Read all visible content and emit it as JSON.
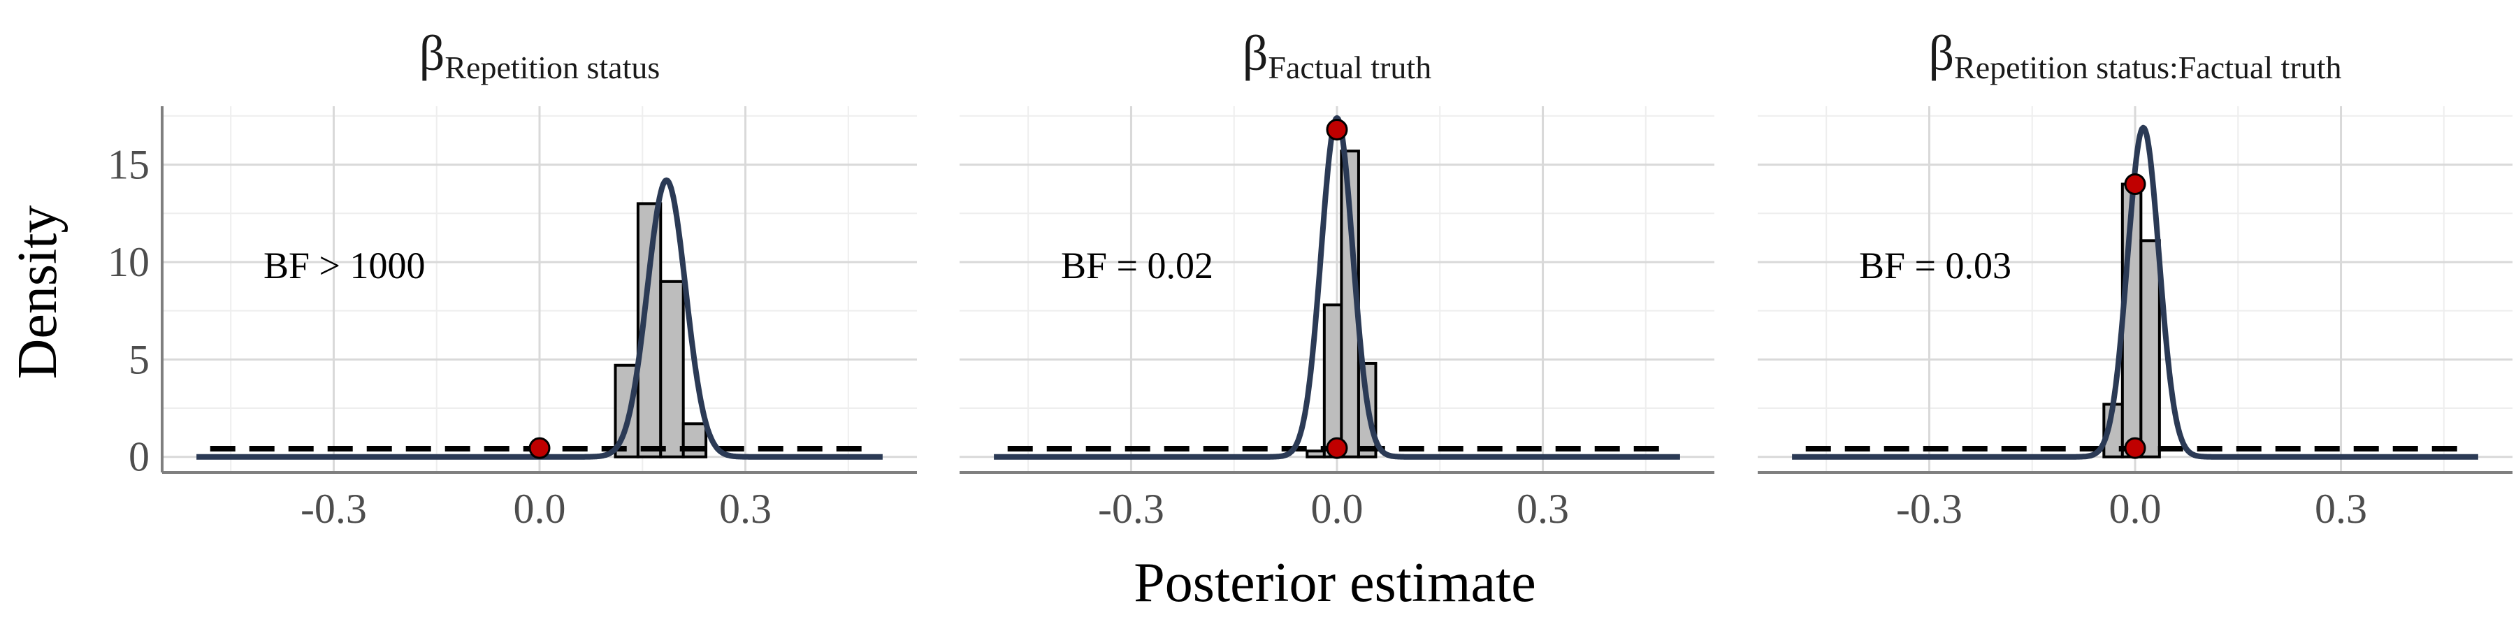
{
  "figure": {
    "ylabel": "Density",
    "xlabel": "Posterior estimate"
  },
  "colors": {
    "density_line": "#2b3a55",
    "histogram_fill": "#bdbdbd",
    "histogram_stroke": "#000000",
    "point_fill": "#c00000",
    "prior_dash": "#000000",
    "grid_major": "#d9d9d9",
    "grid_minor": "#eeeeee",
    "axis_line": "#7f7f7f"
  },
  "chart_data": [
    {
      "type": "histogram+density",
      "title_symbol": "β",
      "title_subscript": "Repetition status",
      "bf_label": "BF > 1000",
      "xlim": [
        -0.55,
        0.55
      ],
      "ylim": [
        -0.8,
        18
      ],
      "x_ticks": [
        "-0.3",
        "0.0",
        "0.3"
      ],
      "x_tick_values": [
        -0.3,
        0.0,
        0.3
      ],
      "y_ticks": [
        "0",
        "5",
        "10",
        "15"
      ],
      "y_tick_values": [
        0,
        5,
        10,
        15
      ],
      "grid": true,
      "histogram": {
        "bin_width": 0.033,
        "bin_centers": [
          0.127,
          0.16,
          0.193,
          0.226
        ],
        "heights": [
          4.7,
          13.0,
          9.0,
          1.7
        ]
      },
      "posterior_density": {
        "mean": 0.185,
        "sd": 0.028,
        "peak": 14.2
      },
      "prior_range": [
        -0.48,
        0.48
      ],
      "prior_density": 0.42,
      "posterior_line_range": [
        -0.5,
        0.5
      ],
      "points": [
        {
          "x": 0.0,
          "y": 0.45
        }
      ]
    },
    {
      "type": "histogram+density",
      "title_symbol": "β",
      "title_subscript": "Factual truth",
      "bf_label": "BF = 0.02",
      "xlim": [
        -0.55,
        0.55
      ],
      "ylim": [
        -0.8,
        18
      ],
      "x_ticks": [
        "-0.3",
        "0.0",
        "0.3"
      ],
      "x_tick_values": [
        -0.3,
        0.0,
        0.3
      ],
      "y_ticks": [
        "0",
        "5",
        "10",
        "15"
      ],
      "y_tick_values": [
        0,
        5,
        10,
        15
      ],
      "grid": true,
      "histogram": {
        "bin_width": 0.025,
        "bin_centers": [
          -0.031,
          -0.006,
          0.019,
          0.044
        ],
        "heights": [
          0.3,
          7.8,
          15.7,
          4.8
        ]
      },
      "posterior_density": {
        "mean": 0.0,
        "sd": 0.023,
        "peak": 17.4
      },
      "prior_range": [
        -0.48,
        0.48
      ],
      "prior_density": 0.42,
      "posterior_line_range": [
        -0.5,
        0.5
      ],
      "points": [
        {
          "x": 0.0,
          "y": 16.8
        },
        {
          "x": 0.0,
          "y": 0.45
        }
      ]
    },
    {
      "type": "histogram+density",
      "title_symbol": "β",
      "title_subscript": "Repetition status:Factual truth",
      "bf_label": "BF = 0.03",
      "xlim": [
        -0.55,
        0.55
      ],
      "ylim": [
        -0.8,
        18
      ],
      "x_ticks": [
        "-0.3",
        "0.0",
        "0.3"
      ],
      "x_tick_values": [
        -0.3,
        0.0,
        0.3
      ],
      "y_ticks": [
        "0",
        "5",
        "10",
        "15"
      ],
      "y_tick_values": [
        0,
        5,
        10,
        15
      ],
      "grid": true,
      "histogram": {
        "bin_width": 0.027,
        "bin_centers": [
          -0.032,
          -0.005,
          0.022
        ],
        "heights": [
          2.7,
          14.0,
          11.1
        ]
      },
      "posterior_density": {
        "mean": 0.012,
        "sd": 0.023,
        "peak": 16.9
      },
      "prior_range": [
        -0.48,
        0.48
      ],
      "prior_density": 0.42,
      "posterior_line_range": [
        -0.5,
        0.5
      ],
      "points": [
        {
          "x": 0.0,
          "y": 14.0
        },
        {
          "x": 0.0,
          "y": 0.45
        }
      ]
    }
  ]
}
